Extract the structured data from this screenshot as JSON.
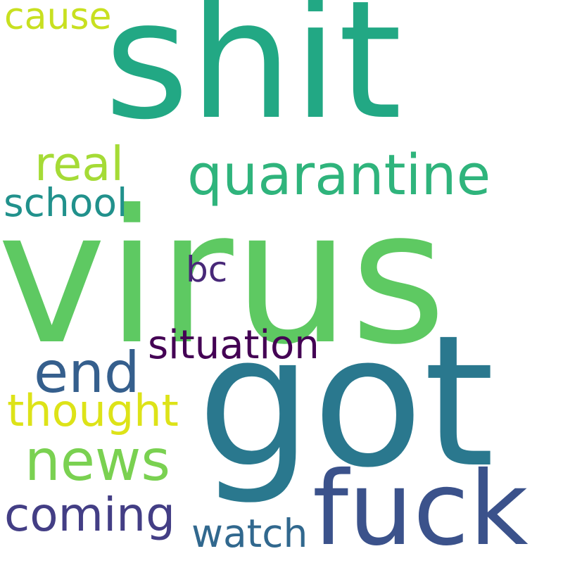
{
  "words": [
    {
      "text": "virus",
      "color": "#5ec962"
    },
    {
      "text": "shit",
      "color": "#22a884"
    },
    {
      "text": "got",
      "color": "#2a788e"
    },
    {
      "text": "fuck",
      "color": "#3b528b"
    },
    {
      "text": "quarantine",
      "color": "#2fb47c"
    },
    {
      "text": "end",
      "color": "#355f8d"
    },
    {
      "text": "news",
      "color": "#7ad151"
    },
    {
      "text": "coming",
      "color": "#433e85"
    },
    {
      "text": "real",
      "color": "#a5db36"
    },
    {
      "text": "school",
      "color": "#21918c"
    },
    {
      "text": "thought",
      "color": "#dde318"
    },
    {
      "text": "situation",
      "color": "#440154"
    },
    {
      "text": "watch",
      "color": "#31688e"
    },
    {
      "text": "bc",
      "color": "#482878"
    },
    {
      "text": "cause",
      "color": "#c8e020"
    }
  ]
}
